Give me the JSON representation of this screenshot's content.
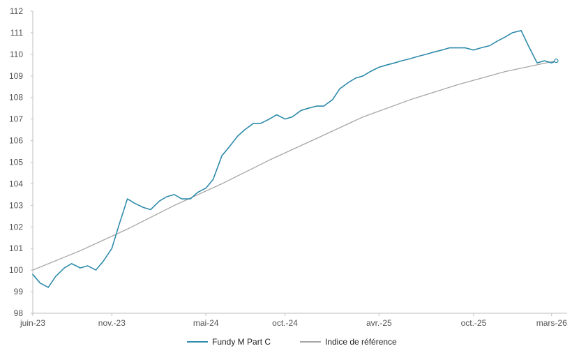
{
  "chart_data": {
    "type": "line",
    "title": "",
    "xlabel": "",
    "ylabel": "",
    "ylim": [
      98,
      112
    ],
    "y_ticks": [
      98,
      99,
      100,
      101,
      102,
      103,
      104,
      105,
      106,
      107,
      108,
      109,
      110,
      111,
      112
    ],
    "x_range": [
      "2023-06-01",
      "2026-03-31"
    ],
    "x_tick_labels": [
      "juin-23",
      "nov.-23",
      "mai-24",
      "oct.-24",
      "avr.-25",
      "oct.-25",
      "mars-26"
    ],
    "x_tick_dates": [
      "2023-06-01",
      "2023-11-01",
      "2024-05-01",
      "2024-10-01",
      "2025-04-01",
      "2025-10-01",
      "2026-03-01"
    ],
    "grid": false,
    "legend_position": "bottom-center",
    "series": [
      {
        "name": "Fundy M Part C",
        "color": "#2e8bab",
        "x": [
          "2023-06-01",
          "2023-06-15",
          "2023-07-01",
          "2023-07-15",
          "2023-08-01",
          "2023-08-15",
          "2023-09-01",
          "2023-09-15",
          "2023-10-01",
          "2023-10-15",
          "2023-11-01",
          "2023-11-15",
          "2023-12-01",
          "2023-12-15",
          "2024-01-01",
          "2024-01-15",
          "2024-02-01",
          "2024-02-15",
          "2024-03-01",
          "2024-03-15",
          "2024-04-01",
          "2024-04-15",
          "2024-05-01",
          "2024-05-15",
          "2024-06-01",
          "2024-06-15",
          "2024-07-01",
          "2024-07-15",
          "2024-08-01",
          "2024-08-15",
          "2024-09-01",
          "2024-09-15",
          "2024-10-01",
          "2024-10-15",
          "2024-11-01",
          "2024-11-15",
          "2024-12-01",
          "2024-12-15",
          "2025-01-01",
          "2025-01-15",
          "2025-02-01",
          "2025-02-15",
          "2025-03-01",
          "2025-03-15",
          "2025-04-01",
          "2025-04-15",
          "2025-05-01",
          "2025-05-15",
          "2025-06-01",
          "2025-06-15",
          "2025-07-01",
          "2025-07-15",
          "2025-08-01",
          "2025-08-15",
          "2025-09-01",
          "2025-09-15",
          "2025-10-01",
          "2025-10-15",
          "2025-11-01",
          "2025-11-15",
          "2025-12-01",
          "2025-12-15",
          "2026-01-01",
          "2026-01-15",
          "2026-02-01",
          "2026-02-15",
          "2026-03-01",
          "2026-03-10"
        ],
        "values": [
          99.8,
          99.4,
          99.2,
          99.7,
          100.1,
          100.3,
          100.1,
          100.2,
          100.0,
          100.4,
          101.0,
          102.1,
          103.3,
          103.1,
          102.9,
          102.8,
          103.2,
          103.4,
          103.5,
          103.3,
          103.3,
          103.6,
          103.8,
          104.2,
          105.3,
          105.7,
          106.2,
          106.5,
          106.8,
          106.8,
          107.0,
          107.2,
          107.0,
          107.1,
          107.4,
          107.5,
          107.6,
          107.6,
          107.9,
          108.4,
          108.7,
          108.9,
          109.0,
          109.2,
          109.4,
          109.5,
          109.6,
          109.7,
          109.8,
          109.9,
          110.0,
          110.1,
          110.2,
          110.3,
          110.3,
          110.3,
          110.2,
          110.3,
          110.4,
          110.6,
          110.8,
          111.0,
          111.1,
          110.4,
          109.6,
          109.7,
          109.6,
          109.7
        ]
      },
      {
        "name": "Indice de référence",
        "color": "#a6a6a6",
        "x": [
          "2023-06-01",
          "2023-09-01",
          "2023-12-01",
          "2024-03-01",
          "2024-06-01",
          "2024-09-01",
          "2024-12-01",
          "2025-03-01",
          "2025-06-01",
          "2025-09-01",
          "2025-12-01",
          "2026-03-10"
        ],
        "values": [
          100.0,
          100.9,
          101.9,
          103.0,
          104.0,
          105.1,
          106.1,
          107.1,
          107.9,
          108.6,
          109.2,
          109.7
        ]
      }
    ]
  }
}
